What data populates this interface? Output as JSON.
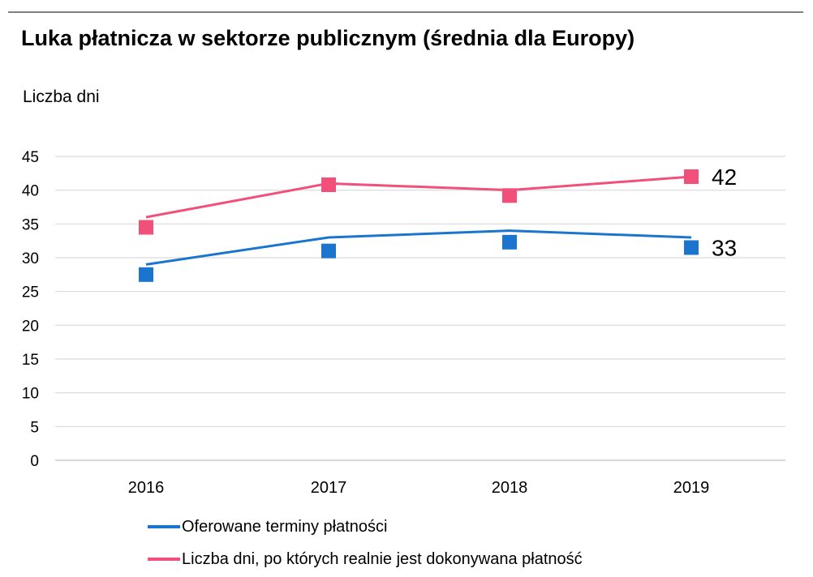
{
  "chart_data": {
    "type": "line",
    "title": "Luka płatnicza w sektorze publicznym (średnia dla Europy)",
    "ylabel": "Liczba dni",
    "xlabel": "",
    "categories": [
      "2016",
      "2017",
      "2018",
      "2019"
    ],
    "ylim": [
      0,
      45
    ],
    "yticks": [
      0,
      5,
      10,
      15,
      20,
      25,
      30,
      35,
      40,
      45
    ],
    "grid": true,
    "legend_position": "bottom",
    "series": [
      {
        "name": "Oferowane terminy płatności",
        "color": "#1b75cf",
        "line_values": [
          29,
          33,
          34,
          33
        ],
        "marker_values": [
          27.5,
          31,
          32.3,
          31.5
        ],
        "end_label": "33"
      },
      {
        "name": "Liczba dni, po których realnie jest dokonywana płatność",
        "color": "#f0507a",
        "line_values": [
          36,
          41,
          40,
          42
        ],
        "marker_values": [
          34.5,
          40.8,
          39.2,
          42
        ],
        "end_label": "42"
      }
    ]
  }
}
